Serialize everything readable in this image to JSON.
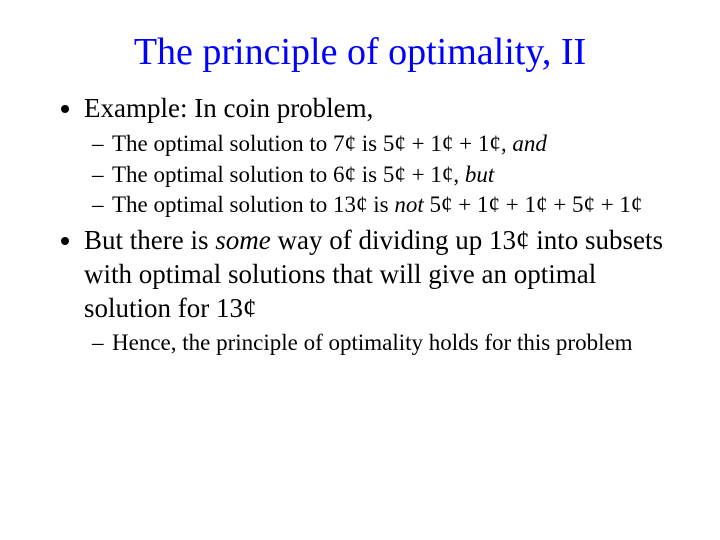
{
  "title_color": "#0000ff",
  "text_color": "#000000",
  "background_color": "#ffffff",
  "title": "The principle of optimality, II",
  "b1_text": "Example: In coin problem,",
  "b1_s1_a": "The optimal solution to 7¢ is 5¢ + 1¢ + 1¢, ",
  "b1_s1_b": "and",
  "b1_s2_a": "The optimal solution to 6¢ is 5¢ + 1¢, ",
  "b1_s2_b": "but",
  "b1_s3_a": "The optimal solution to 13¢ is ",
  "b1_s3_b": "not",
  "b1_s3_c": " 5¢ + 1¢ + 1¢ + 5¢ + 1¢",
  "b2_a": "But there is ",
  "b2_b": "some",
  "b2_c": " way of dividing up 13¢ into subsets with optimal solutions that will give an optimal solution for 13¢",
  "b2_s1": "Hence, the principle of optimality holds for this problem"
}
